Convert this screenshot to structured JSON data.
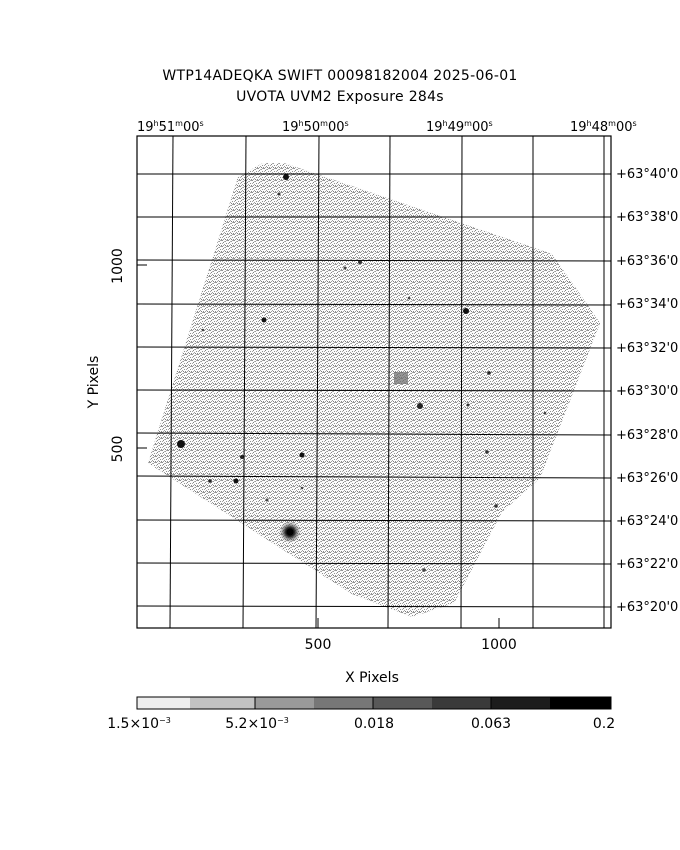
{
  "title": {
    "line1": "WTP14ADEQKA SWIFT 00098182004 2025-06-01",
    "line2": "UVOTA UVM2 Exposure        284s"
  },
  "axes": {
    "xlabel": "X Pixels",
    "ylabel": "Y Pixels",
    "x_ticks": [
      "500",
      "1000"
    ],
    "y_ticks": [
      "500",
      "1000"
    ],
    "ra_ticks": [
      {
        "h": "19",
        "m": "51",
        "s": "00"
      },
      {
        "h": "19",
        "m": "50",
        "s": "00"
      },
      {
        "h": "19",
        "m": "49",
        "s": "00"
      },
      {
        "h": "19",
        "m": "48",
        "s": "00"
      }
    ],
    "dec_ticks": [
      "+63°40'0",
      "+63°38'0",
      "+63°36'0",
      "+63°34'0",
      "+63°32'0",
      "+63°30'0",
      "+63°28'0",
      "+63°26'0",
      "+63°24'0",
      "+63°22'0",
      "+63°20'0"
    ]
  },
  "colorbar": {
    "labels": [
      {
        "mantissa": "1.5×10",
        "exp": "−3"
      },
      {
        "mantissa": "5.2×10",
        "exp": "−3"
      },
      {
        "mantissa": "0.018",
        "exp": ""
      },
      {
        "mantissa": "0.063",
        "exp": ""
      },
      {
        "mantissa": "0.2",
        "exp": ""
      }
    ],
    "colors": [
      "#eeeeee",
      "#d0d0d0",
      "#b0b0b0",
      "#8e8e8e",
      "#6c6c6c",
      "#4c4c4c",
      "#2e2e2e",
      "#141414",
      "#000000"
    ]
  }
}
